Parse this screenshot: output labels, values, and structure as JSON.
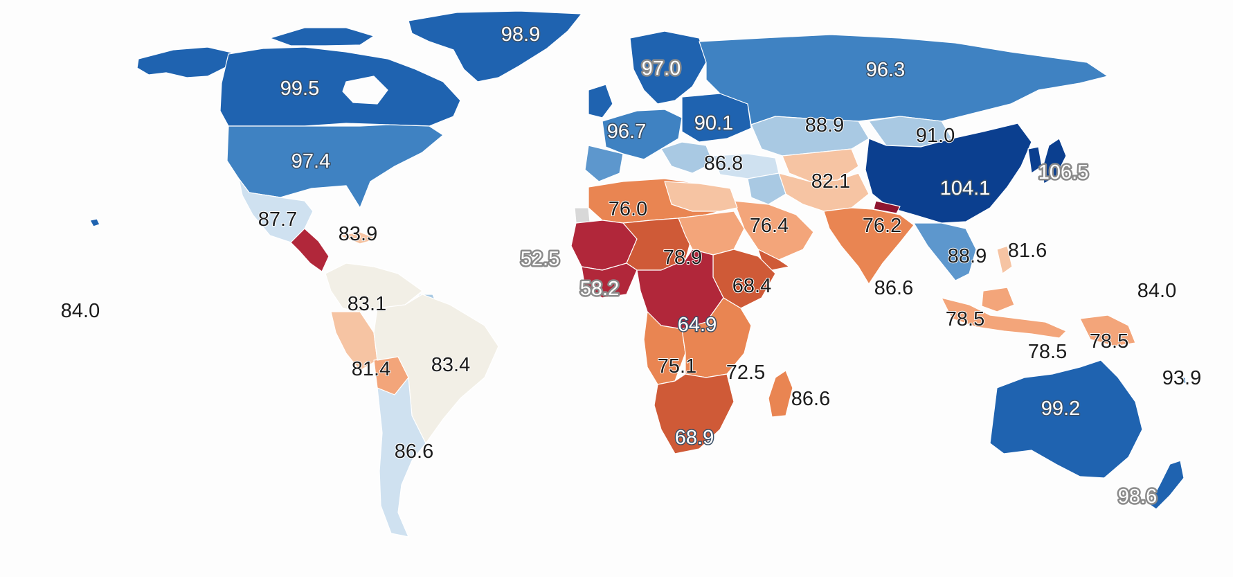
{
  "palette": {
    "deep_blue": "#0b3f8f",
    "blue": "#1f63b0",
    "mid_blue": "#3f82c2",
    "light_blue": "#a9c9e3",
    "pale_blue": "#cfe1f0",
    "neutral": "#f2efe6",
    "peach": "#f6c4a3",
    "light_orange": "#f3a57a",
    "orange": "#e98552",
    "dark_orange": "#cf5a37",
    "red": "#b1273a",
    "crimson": "#8f1530"
  },
  "labels": [
    {
      "id": "greenland",
      "text": "98.9"
    },
    {
      "id": "canada",
      "text": "99.5"
    },
    {
      "id": "usa",
      "text": "97.4"
    },
    {
      "id": "mexico",
      "text": "87.7"
    },
    {
      "id": "caribbean",
      "text": "83.9"
    },
    {
      "id": "pacific-west",
      "text": "84.0"
    },
    {
      "id": "colombia",
      "text": "83.1"
    },
    {
      "id": "peru-bolivia",
      "text": "81.4"
    },
    {
      "id": "brazil",
      "text": "83.4"
    },
    {
      "id": "argentina",
      "text": "86.6"
    },
    {
      "id": "scandinavia",
      "text": "97.0"
    },
    {
      "id": "western-europe",
      "text": "96.7"
    },
    {
      "id": "eastern-europe",
      "text": "90.1"
    },
    {
      "id": "russia",
      "text": "96.3"
    },
    {
      "id": "kazakhstan",
      "text": "88.9"
    },
    {
      "id": "mongolia",
      "text": "91.0"
    },
    {
      "id": "turkey",
      "text": "86.8"
    },
    {
      "id": "iran-pakistan",
      "text": "82.1"
    },
    {
      "id": "china",
      "text": "104.1"
    },
    {
      "id": "japan",
      "text": "106.5"
    },
    {
      "id": "north-africa",
      "text": "76.0"
    },
    {
      "id": "arabia",
      "text": "76.4"
    },
    {
      "id": "india",
      "text": "76.2"
    },
    {
      "id": "west-africa-coast",
      "text": "52.5"
    },
    {
      "id": "central-sahel",
      "text": "78.9"
    },
    {
      "id": "guinea-coast",
      "text": "58.2"
    },
    {
      "id": "horn-of-africa",
      "text": "68.4"
    },
    {
      "id": "central-africa",
      "text": "64.9"
    },
    {
      "id": "southeast-asia",
      "text": "88.9"
    },
    {
      "id": "philippines",
      "text": "81.6"
    },
    {
      "id": "south-asia-islands",
      "text": "86.6"
    },
    {
      "id": "indonesia-west",
      "text": "78.5"
    },
    {
      "id": "indonesia-east",
      "text": "78.5"
    },
    {
      "id": "new-guinea",
      "text": "78.5"
    },
    {
      "id": "pacific-east",
      "text": "84.0"
    },
    {
      "id": "angola",
      "text": "75.1"
    },
    {
      "id": "east-africa",
      "text": "72.5"
    },
    {
      "id": "madagascar",
      "text": "86.6"
    },
    {
      "id": "southern-africa",
      "text": "68.9"
    },
    {
      "id": "australia",
      "text": "99.2"
    },
    {
      "id": "pacific-islands",
      "text": "93.9"
    },
    {
      "id": "new-zealand",
      "text": "98.6"
    }
  ]
}
